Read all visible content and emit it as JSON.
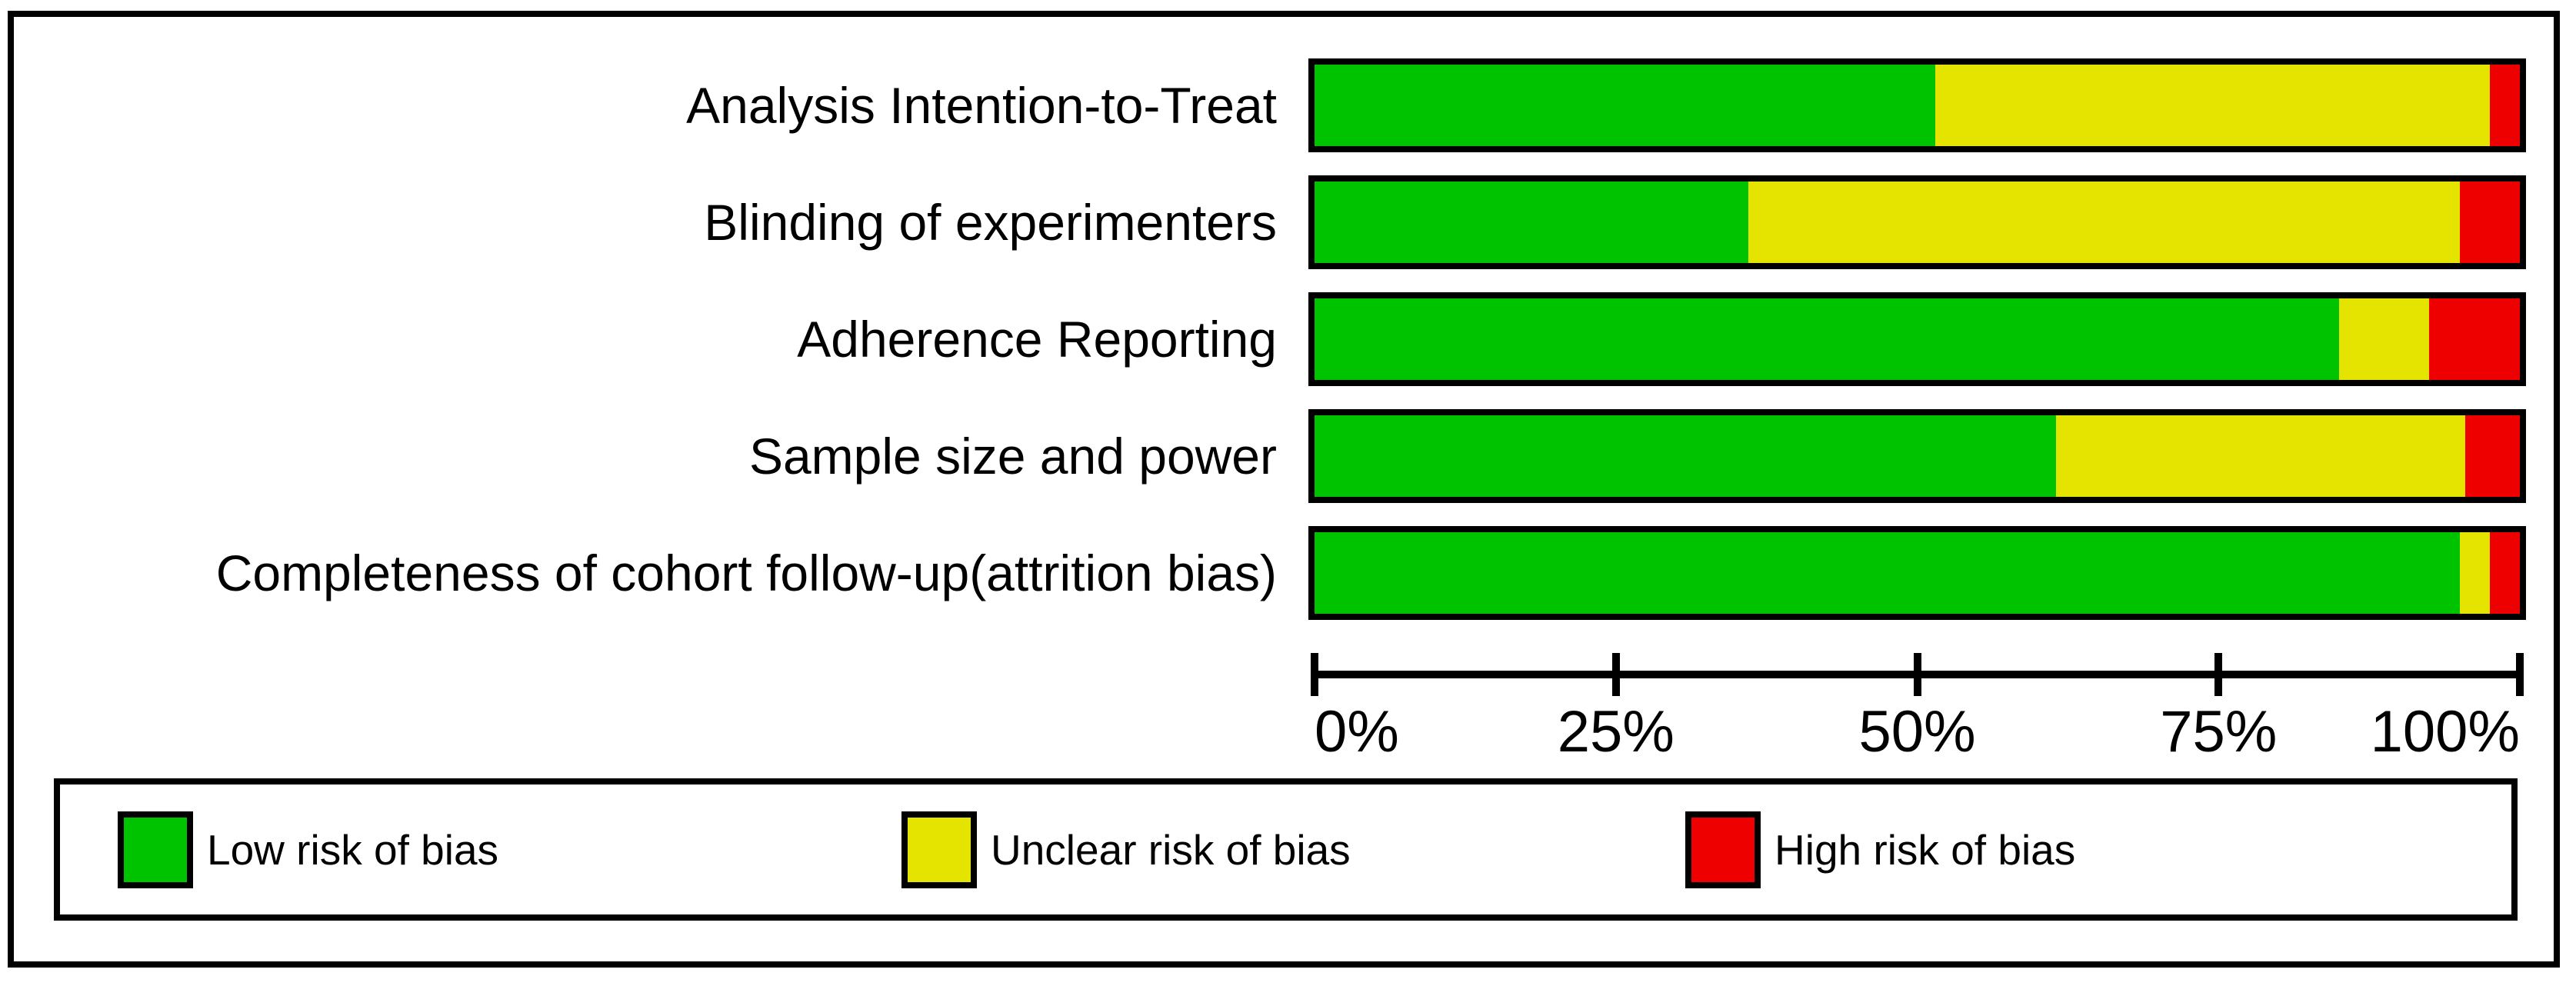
{
  "figure": {
    "kind": "risk-of-bias-summary-figure",
    "background_color": "#FFFFFF",
    "border_color": "#000000"
  },
  "chart_data": {
    "type": "bar",
    "orientation": "horizontal",
    "stacked": true,
    "value_unit": "percent",
    "title": "",
    "xlabel": "",
    "ylabel": "",
    "grid": false,
    "categories": [
      "Analysis Intention-to-Treat",
      "Blinding of experimenters",
      "Adherence Reporting",
      "Sample size and power",
      "Completeness of cohort follow-up(attrition bias)"
    ],
    "series": [
      {
        "name": "Low risk of bias",
        "color": "#00C300",
        "values": [
          51.5,
          36.0,
          85.0,
          61.5,
          95.0
        ]
      },
      {
        "name": "Unclear risk of bias",
        "color": "#E4E400",
        "values": [
          46.0,
          59.0,
          7.5,
          34.0,
          2.5
        ]
      },
      {
        "name": "High risk of bias",
        "color": "#EE0000",
        "values": [
          2.5,
          5.0,
          7.5,
          4.5,
          2.5
        ]
      }
    ],
    "x_axis": {
      "range": [
        0,
        100
      ],
      "tick_labels": [
        "0%",
        "25%",
        "50%",
        "75%",
        "100%"
      ],
      "tick_values": [
        0,
        25,
        50,
        75,
        100
      ]
    },
    "legend": {
      "position": "bottom",
      "items": [
        {
          "label": "Low risk of bias",
          "color": "#00C300"
        },
        {
          "label": "Unclear risk of bias",
          "color": "#E4E400"
        },
        {
          "label": "High risk of bias",
          "color": "#EE0000"
        }
      ]
    }
  }
}
